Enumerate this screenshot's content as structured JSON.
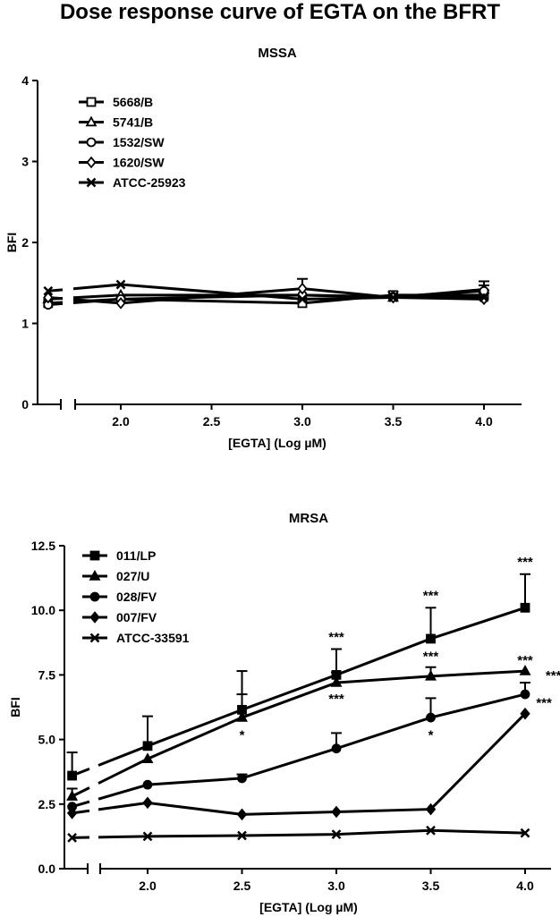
{
  "title": "Dose response curve of EGTA on the BFRT",
  "chart_data": [
    {
      "type": "line",
      "title": "MSSA",
      "xlabel": "[EGTA] (Log µM)",
      "ylabel": "BFI",
      "xlim": [
        1.5,
        4.2
      ],
      "ylim": [
        0,
        4
      ],
      "xticks": [
        "2.0",
        "2.5",
        "3.0",
        "3.5",
        "4.0"
      ],
      "yticks": [
        "0",
        "1",
        "2",
        "3",
        "4"
      ],
      "x": [
        1.6,
        2.0,
        3.0,
        3.5,
        4.0
      ],
      "series": [
        {
          "name": "5668/B",
          "marker": "square-open",
          "values": [
            1.25,
            1.3,
            1.25,
            1.35,
            1.35
          ],
          "err": [
            0,
            0,
            0,
            0.04,
            0.06
          ]
        },
        {
          "name": "5741/B",
          "marker": "triangle-open",
          "values": [
            1.3,
            1.35,
            1.35,
            1.32,
            1.42
          ],
          "err": [
            0,
            0,
            0,
            0,
            0.05
          ]
        },
        {
          "name": "1532/SW",
          "marker": "circle-open",
          "values": [
            1.23,
            1.3,
            1.35,
            1.33,
            1.4
          ],
          "err": [
            0,
            0,
            0.2,
            0,
            0.12
          ]
        },
        {
          "name": "1620/SW",
          "marker": "diamond-open",
          "values": [
            1.32,
            1.25,
            1.43,
            1.32,
            1.3
          ],
          "err": [
            0,
            0,
            0,
            0,
            0
          ]
        },
        {
          "name": "ATCC-25923",
          "marker": "cross",
          "values": [
            1.4,
            1.48,
            1.3,
            1.32,
            1.32
          ],
          "err": [
            0,
            0,
            0,
            0,
            0
          ]
        }
      ],
      "legend": "top-left",
      "annotations": []
    },
    {
      "type": "line",
      "title": "MRSA",
      "xlabel": "[EGTA] (Log µM)",
      "ylabel": "BFI",
      "xlim": [
        1.5,
        4.2
      ],
      "ylim": [
        0,
        12.5
      ],
      "xticks": [
        "2.0",
        "2.5",
        "3.0",
        "3.5",
        "4.0"
      ],
      "yticks": [
        "0.0",
        "2.5",
        "5.0",
        "7.5",
        "10.0",
        "12.5"
      ],
      "x": [
        1.6,
        2.0,
        2.5,
        3.0,
        3.5,
        4.0
      ],
      "series": [
        {
          "name": "011/LP",
          "marker": "square",
          "values": [
            3.6,
            4.75,
            6.15,
            7.5,
            8.9,
            10.1
          ],
          "err": [
            0.9,
            1.15,
            1.5,
            1.0,
            1.2,
            1.3
          ]
        },
        {
          "name": "027/U",
          "marker": "triangle",
          "values": [
            2.8,
            4.25,
            5.85,
            7.2,
            7.45,
            7.65
          ],
          "err": [
            0.3,
            0,
            0.9,
            0.4,
            0.35,
            0
          ]
        },
        {
          "name": "028/FV",
          "marker": "circle",
          "values": [
            2.4,
            3.25,
            3.5,
            4.65,
            5.85,
            6.75
          ],
          "err": [
            0,
            0,
            0.15,
            0.6,
            0.75,
            0.45
          ]
        },
        {
          "name": "007/FV",
          "marker": "diamond",
          "values": [
            2.15,
            2.55,
            2.1,
            2.2,
            2.3,
            6.0
          ],
          "err": [
            0,
            0,
            0,
            0,
            0,
            0
          ]
        },
        {
          "name": "ATCC-33591",
          "marker": "cross",
          "values": [
            1.2,
            1.25,
            1.28,
            1.33,
            1.48,
            1.38
          ],
          "err": [
            0,
            0,
            0,
            0,
            0,
            0
          ]
        }
      ],
      "legend": "top-left",
      "annotations": [
        {
          "text": "*",
          "x": 2.5,
          "y": 5.0
        },
        {
          "text": "***",
          "x": 3.0,
          "y": 8.8
        },
        {
          "text": "***",
          "x": 3.0,
          "y": 6.4
        },
        {
          "text": "***",
          "x": 3.5,
          "y": 10.4
        },
        {
          "text": "***",
          "x": 3.5,
          "y": 8.05
        },
        {
          "text": "*",
          "x": 3.5,
          "y": 5.0
        },
        {
          "text": "***",
          "x": 4.0,
          "y": 11.7
        },
        {
          "text": "***",
          "x": 4.0,
          "y": 7.9
        },
        {
          "text": "***",
          "x": 4.15,
          "y": 7.3
        },
        {
          "text": "***",
          "x": 4.1,
          "y": 6.25
        }
      ]
    }
  ]
}
